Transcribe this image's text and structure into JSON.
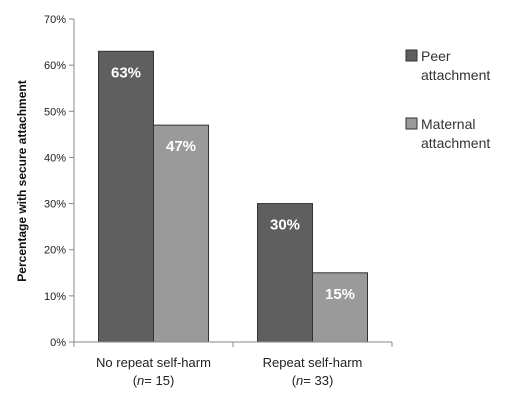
{
  "chart_data": {
    "type": "bar",
    "ylabel": "Percentage with secure attachment",
    "ylim": [
      0,
      70
    ],
    "yticks": [
      0,
      10,
      20,
      30,
      40,
      50,
      60,
      70
    ],
    "ytick_suffix": "%",
    "grid": false,
    "legend_position": "right",
    "categories": [
      {
        "line1": "No repeat self-harm",
        "n_prefix": "(",
        "n_label": "n",
        "n_value": "= 15)"
      },
      {
        "line1": "Repeat self-harm",
        "n_prefix": "(",
        "n_label": "n",
        "n_value": "= 33)"
      }
    ],
    "series": [
      {
        "name": "Peer attachment",
        "legend_lines": [
          "Peer",
          "attachment"
        ],
        "color": "#5f5f5f",
        "values": [
          63,
          30
        ],
        "labels": [
          "63%",
          "30%"
        ]
      },
      {
        "name": "Maternal attachment",
        "legend_lines": [
          "Maternal",
          "attachment"
        ],
        "color": "#9a9a9a",
        "values": [
          47,
          15
        ],
        "labels": [
          "47%",
          "15%"
        ]
      }
    ]
  }
}
